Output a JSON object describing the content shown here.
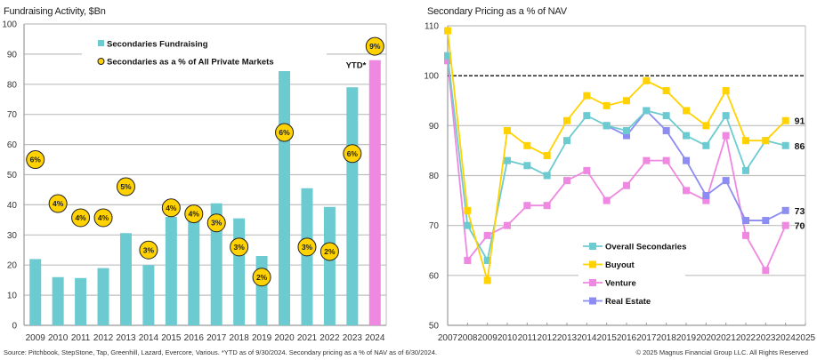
{
  "footer": {
    "source": "Source: Pitchbook, StepStone, Tap, Greenhill, Lazard, Evercore, Various. *YTD as of 9/30/2024. Secondary pricing as a % of NAV as of 6/30/2024.",
    "copyright": "© 2025 Magnus Financial Group LLC. All Rights Reserved"
  },
  "colors": {
    "teal": "#6CCBD0",
    "pink": "#EE88E0",
    "yellow": "#FFD200",
    "purple": "#8C8CF2",
    "grid": "#BFBFBF"
  },
  "chart_data": [
    {
      "type": "bar",
      "title": "Fundraising Activity, $Bn",
      "xlabel": "",
      "ylabel": "",
      "ylim": [
        0,
        100
      ],
      "yticks": [
        0,
        10,
        20,
        30,
        40,
        50,
        60,
        70,
        80,
        90,
        100
      ],
      "grid": true,
      "legend_position": "top-left",
      "categories": [
        "2009",
        "2010",
        "2011",
        "2012",
        "2013",
        "2014",
        "2015",
        "2016",
        "2017",
        "2018",
        "2019",
        "2020",
        "2021",
        "2022",
        "2023",
        "2024"
      ],
      "series": [
        {
          "name": "Secondaries Fundraising",
          "values": [
            22,
            16,
            15.7,
            19,
            30.6,
            20,
            36,
            35.7,
            40.5,
            35.5,
            23,
            90,
            45.5,
            39.3,
            79,
            88
          ],
          "color": "#6CCBD0",
          "highlight_last_color": "#EE88E0"
        },
        {
          "name": "Secondaries as a % of All Private Markets",
          "labels": [
            "6%",
            "4%",
            "4%",
            "4%",
            "5%",
            "3%",
            "4%",
            "4%",
            "3%",
            "3%",
            "2%",
            "6%",
            "3%",
            "2%",
            "6%",
            "9%"
          ],
          "marker_y": [
            55,
            40.4,
            35.7,
            35.7,
            46,
            25,
            39,
            37,
            34,
            26,
            16,
            64,
            26,
            24.5,
            57,
            92.6
          ],
          "color": "#FFD200"
        }
      ],
      "annotations": [
        {
          "text": "YTD*",
          "category": "2024"
        }
      ]
    },
    {
      "type": "line",
      "title": "Secondary Pricing as a % of NAV",
      "xlabel": "",
      "ylabel": "",
      "ylim": [
        50,
        110
      ],
      "yticks": [
        50,
        60,
        70,
        80,
        90,
        100,
        110
      ],
      "xticks": [
        2007,
        2008,
        2009,
        2010,
        2011,
        2012,
        2013,
        2014,
        2015,
        2016,
        2017,
        2018,
        2019,
        2020,
        2021,
        2022,
        2023,
        2024,
        2025
      ],
      "xlim": [
        2007,
        2025
      ],
      "grid": true,
      "reference_line": {
        "y": 100,
        "style": "dashed"
      },
      "legend_position": "bottom-center",
      "series": [
        {
          "name": "Overall Secondaries",
          "color": "#6CCBD0",
          "x": [
            2007,
            2008,
            2009,
            2010,
            2011,
            2012,
            2013,
            2014,
            2015,
            2016,
            2017,
            2018,
            2019,
            2020,
            2021,
            2022,
            2023,
            2024
          ],
          "values": [
            104,
            70,
            63,
            83,
            82,
            80,
            87,
            92,
            90,
            89,
            93,
            92,
            88,
            86,
            92,
            81,
            87,
            86
          ],
          "end_label": "86"
        },
        {
          "name": "Buyout",
          "color": "#FFD200",
          "x": [
            2007,
            2008,
            2009,
            2010,
            2011,
            2012,
            2013,
            2014,
            2015,
            2016,
            2017,
            2018,
            2019,
            2020,
            2021,
            2022,
            2023,
            2024
          ],
          "values": [
            109,
            73,
            59,
            89,
            86,
            84,
            91,
            96,
            94,
            95,
            99,
            97,
            93,
            90,
            97,
            87,
            87,
            91
          ],
          "end_label": "91"
        },
        {
          "name": "Venture",
          "color": "#EE88E0",
          "x": [
            2007,
            2008,
            2009,
            2010,
            2011,
            2012,
            2013,
            2014,
            2015,
            2016,
            2017,
            2018,
            2019,
            2020,
            2021,
            2022,
            2023,
            2024
          ],
          "values": [
            103,
            63,
            68,
            70,
            74,
            74,
            79,
            81,
            75,
            78,
            83,
            83,
            77,
            75,
            88,
            68,
            61,
            70
          ],
          "end_label": "70"
        },
        {
          "name": "Real Estate",
          "color": "#8C8CF2",
          "x": [
            2015,
            2016,
            2017,
            2018,
            2019,
            2020,
            2021,
            2022,
            2023,
            2024
          ],
          "values": [
            90,
            88,
            93,
            89,
            83,
            76,
            79,
            71,
            71,
            73
          ],
          "end_label": "73"
        }
      ]
    }
  ]
}
